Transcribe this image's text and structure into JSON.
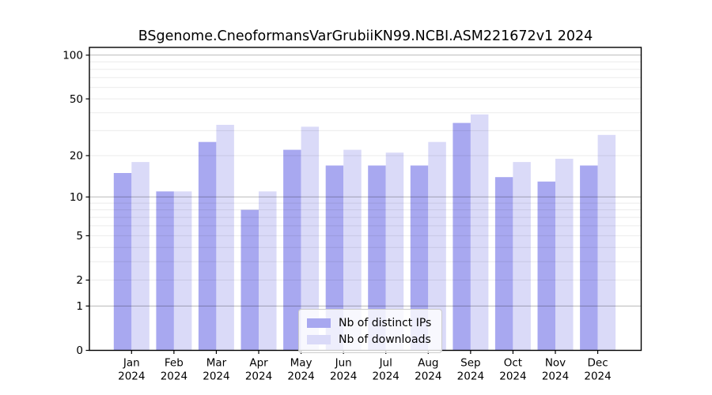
{
  "title": "BSgenome.CneoformansVarGrubiiKN99.NCBI.ASM221672v1 2024",
  "chart_data": {
    "type": "bar",
    "categories": [
      "Jan",
      "Feb",
      "Mar",
      "Apr",
      "May",
      "Jun",
      "Jul",
      "Aug",
      "Sep",
      "Oct",
      "Nov",
      "Dec"
    ],
    "x_sublabel": "2024",
    "series": [
      {
        "name": "Nb of distinct IPs",
        "color": "#a8a8f0",
        "values": [
          15,
          11,
          25,
          8,
          22,
          17,
          17,
          17,
          34,
          14,
          13,
          17
        ]
      },
      {
        "name": "Nb of downloads",
        "color": "#dadaf8",
        "values": [
          18,
          11,
          33,
          11,
          32,
          22,
          21,
          25,
          39,
          18,
          19,
          28
        ]
      }
    ],
    "yticks": [
      0,
      1,
      2,
      5,
      10,
      20,
      50,
      100
    ],
    "minor_yticks": [
      3,
      4,
      6,
      7,
      8,
      9,
      30,
      40,
      60,
      70,
      80,
      90
    ],
    "scale": "log1p",
    "ylim": [
      0,
      113
    ],
    "grid": true,
    "legend_position": "inside-bottom-center",
    "axis_color": "#000000",
    "major_grid_color": "rgba(0,0,0,0.28)",
    "minor_grid_color": "rgba(0,0,0,0.08)"
  }
}
